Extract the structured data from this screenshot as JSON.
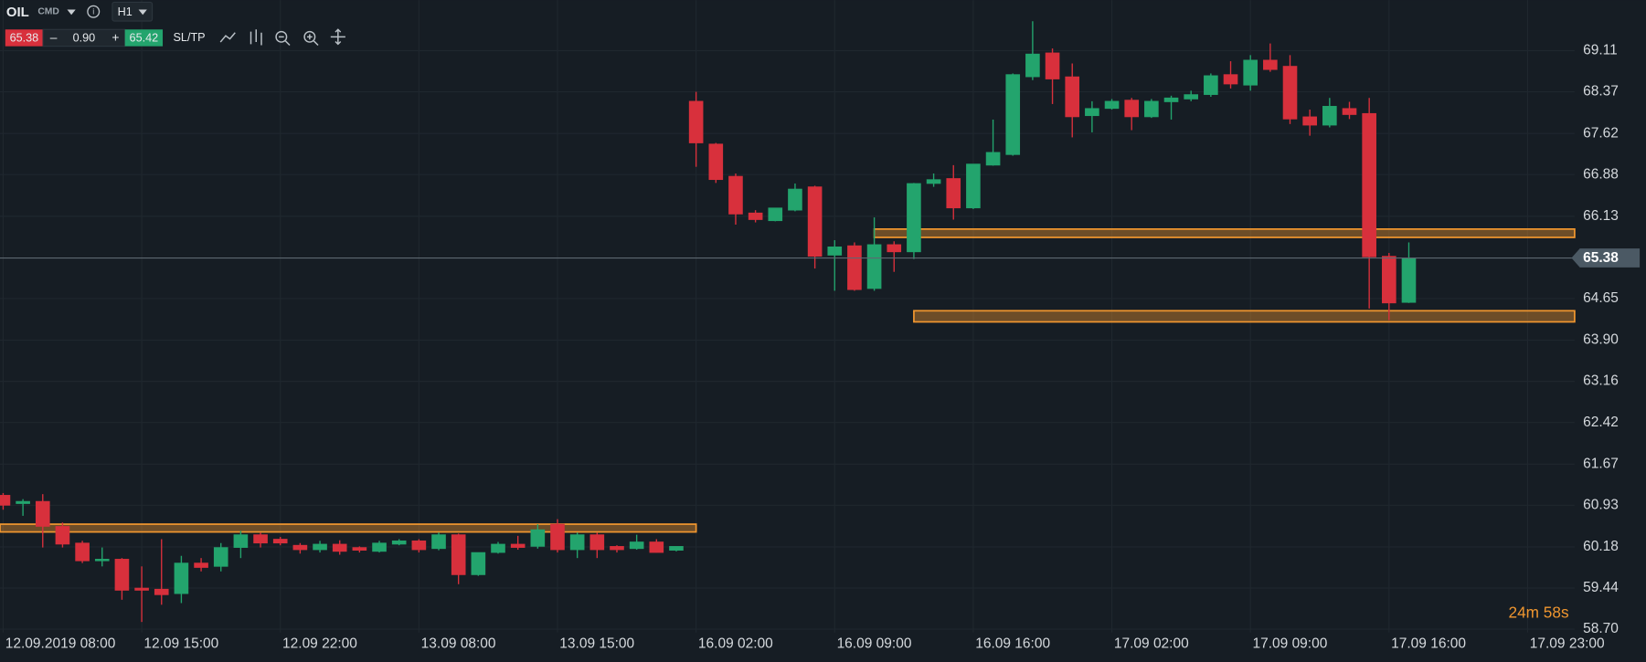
{
  "ui": {
    "symbol": "OIL",
    "market": "CMD",
    "timeframe": "H1",
    "sell": "65.38",
    "minus": "–",
    "volume": "0.90",
    "plus": "+",
    "buy": "65.42",
    "sltp": "SL/TP",
    "countdown": "24m 58s"
  },
  "chart_data": {
    "type": "candlestick",
    "categories": [
      "12.09.2019 08:00",
      null,
      null,
      null,
      null,
      null,
      null,
      "12.09 15:00",
      null,
      null,
      null,
      null,
      null,
      null,
      "12.09 22:00",
      null,
      null,
      null,
      null,
      null,
      null,
      "13.09 08:00",
      null,
      null,
      null,
      null,
      null,
      null,
      "13.09 15:00",
      null,
      null,
      null,
      null,
      null,
      null,
      "16.09 02:00",
      null,
      null,
      null,
      null,
      null,
      null,
      "16.09 09:00",
      null,
      null,
      null,
      null,
      null,
      null,
      "16.09 16:00",
      null,
      null,
      null,
      null,
      null,
      null,
      "17.09 02:00",
      null,
      null,
      null,
      null,
      null,
      null,
      "17.09 09:00",
      null,
      null,
      null,
      null,
      null,
      null,
      "17.09 16:00",
      null,
      null,
      null,
      null,
      null,
      null,
      "17.09 23:00"
    ],
    "open": [
      61.11,
      60.96,
      61.0,
      60.55,
      60.25,
      59.93,
      59.96,
      59.44,
      59.42,
      59.34,
      59.89,
      59.83,
      60.17,
      60.4,
      60.32,
      60.21,
      60.13,
      60.23,
      60.17,
      60.1,
      60.23,
      60.29,
      60.15,
      60.4,
      59.68,
      60.08,
      60.23,
      60.19,
      60.59,
      60.13,
      60.4,
      60.19,
      60.15,
      60.27,
      60.12,
      68.2,
      67.43,
      66.85,
      66.19,
      66.05,
      66.24,
      66.66,
      65.43,
      65.6,
      64.83,
      65.62,
      65.49,
      66.72,
      66.81,
      66.28,
      67.05,
      67.24,
      68.64,
      69.07,
      68.64,
      67.94,
      68.07,
      68.22,
      67.92,
      68.19,
      68.24,
      68.32,
      68.68,
      68.49,
      68.94,
      68.83,
      67.92,
      67.77,
      68.07,
      67.98,
      65.41,
      64.58,
      null,
      null,
      null,
      null,
      null,
      null
    ],
    "high": [
      61.15,
      61.04,
      61.13,
      60.62,
      60.29,
      60.17,
      59.98,
      59.83,
      60.32,
      60.02,
      59.98,
      60.25,
      60.47,
      60.44,
      60.36,
      60.25,
      60.29,
      60.3,
      60.19,
      60.29,
      60.32,
      60.32,
      60.44,
      60.42,
      60.08,
      60.27,
      60.38,
      60.59,
      60.68,
      60.44,
      60.44,
      60.21,
      60.4,
      60.32,
      60.19,
      68.37,
      67.45,
      66.9,
      66.24,
      66.28,
      66.72,
      66.68,
      65.7,
      65.66,
      66.11,
      65.68,
      66.73,
      66.9,
      67.05,
      67.07,
      67.87,
      68.7,
      69.64,
      69.15,
      68.88,
      68.2,
      68.24,
      68.26,
      68.24,
      68.3,
      68.39,
      68.7,
      68.92,
      69.03,
      69.24,
      69.03,
      68.05,
      68.26,
      68.19,
      68.26,
      65.47,
      65.66,
      null,
      null,
      null,
      null,
      null,
      null
    ],
    "low": [
      60.85,
      60.74,
      60.17,
      60.17,
      59.89,
      59.83,
      59.23,
      58.83,
      59.14,
      59.17,
      59.74,
      59.74,
      59.98,
      60.17,
      60.21,
      60.06,
      60.08,
      60.04,
      60.08,
      60.08,
      60.21,
      60.08,
      60.12,
      59.51,
      59.66,
      60.06,
      60.13,
      60.15,
      60.08,
      59.98,
      59.98,
      60.08,
      60.13,
      60.08,
      60.1,
      67.02,
      66.73,
      65.98,
      66.02,
      66.04,
      66.22,
      65.19,
      64.79,
      64.79,
      64.79,
      65.13,
      65.36,
      66.66,
      66.07,
      66.26,
      67.04,
      67.22,
      68.58,
      68.15,
      67.55,
      67.64,
      68.05,
      67.68,
      67.9,
      67.87,
      68.2,
      68.28,
      68.43,
      68.39,
      68.73,
      67.79,
      67.58,
      67.73,
      67.88,
      64.47,
      64.26,
      64.57,
      null,
      null,
      null,
      null,
      null,
      null
    ],
    "close": [
      60.93,
      61.0,
      60.55,
      60.23,
      59.93,
      59.96,
      59.4,
      59.4,
      59.32,
      59.89,
      59.81,
      60.17,
      60.4,
      60.25,
      60.25,
      60.13,
      60.23,
      60.1,
      60.12,
      60.25,
      60.29,
      60.13,
      60.4,
      59.68,
      60.08,
      60.23,
      60.17,
      60.49,
      60.13,
      60.4,
      60.13,
      60.13,
      60.27,
      60.08,
      60.19,
      67.45,
      66.79,
      66.17,
      66.07,
      66.28,
      66.62,
      65.41,
      65.58,
      64.81,
      65.62,
      65.49,
      66.72,
      66.79,
      66.28,
      67.07,
      67.28,
      68.68,
      69.05,
      68.6,
      67.92,
      68.07,
      68.2,
      67.92,
      68.2,
      68.26,
      68.32,
      68.66,
      68.51,
      68.94,
      68.77,
      67.88,
      67.77,
      68.11,
      67.96,
      65.4,
      64.57,
      65.38,
      null,
      null,
      null,
      null,
      null,
      null
    ],
    "up_color": "#23a46d",
    "down_color": "#d8303c",
    "last_price": {
      "value": 65.38,
      "label": "65.38"
    },
    "zones": [
      {
        "start": 0,
        "end": 35,
        "low": 60.45,
        "high": 60.59
      },
      {
        "start": 44,
        "low": 65.75,
        "high": 65.9
      },
      {
        "start": 46,
        "low": 64.23,
        "high": 64.43
      }
    ],
    "zone_color": "#f0962f",
    "ylim": [
      58.64,
      70.02
    ],
    "yticks": [
      69.11,
      68.37,
      67.62,
      66.88,
      66.13,
      64.65,
      {
        "value": 63.9,
        "label": "63.90"
      },
      63.16,
      62.42,
      61.67,
      60.93,
      60.18,
      59.44,
      {
        "value": 58.7,
        "label": "58.70"
      }
    ],
    "grid": true
  }
}
